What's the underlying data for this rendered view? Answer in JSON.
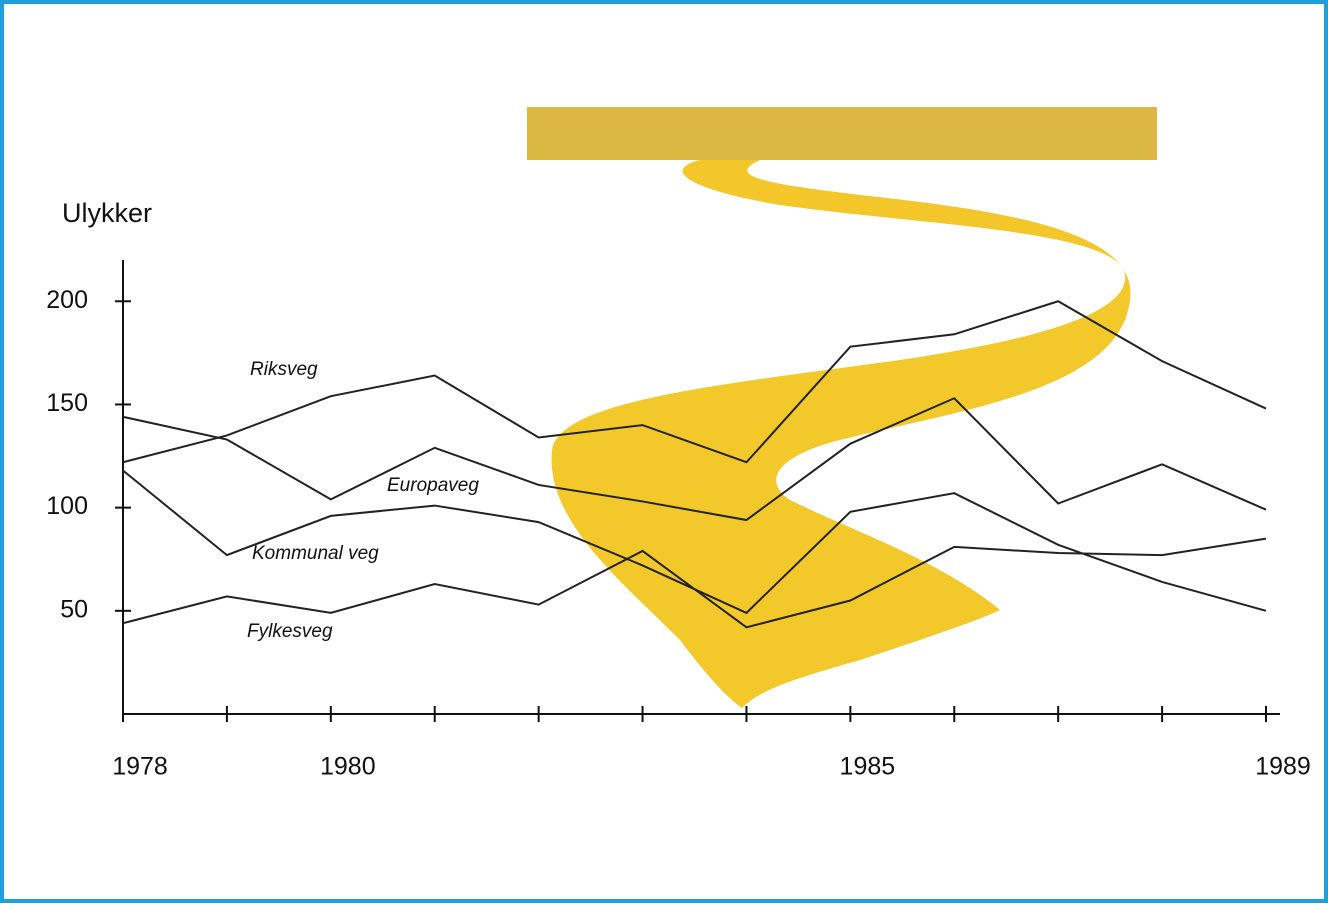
{
  "chart_data": {
    "type": "line",
    "y_label": "Ulykker",
    "categories": [
      "1978",
      null,
      "1980",
      null,
      null,
      null,
      null,
      "1985",
      null,
      null,
      null,
      "1989"
    ],
    "series": [
      {
        "name": "Riksveg",
        "color": "#222222",
        "values": [
          122,
          135,
          154,
          164,
          134,
          140,
          122,
          178,
          184,
          200,
          171,
          148
        ]
      },
      {
        "name": "Europaveg",
        "color": "#222222",
        "values": [
          144,
          133,
          104,
          129,
          111,
          103,
          94,
          131,
          153,
          102,
          121,
          99
        ]
      },
      {
        "name": "Kommunal veg",
        "color": "#222222",
        "values": [
          118,
          77,
          96,
          101,
          93,
          72,
          49,
          98,
          107,
          82,
          64,
          50
        ]
      },
      {
        "name": "Fylkesveg",
        "color": "#222222",
        "values": [
          44,
          57,
          49,
          63,
          53,
          79,
          42,
          55,
          81,
          78,
          77,
          85
        ]
      }
    ],
    "ylim": [
      0,
      220
    ],
    "yticks": [
      50,
      100,
      150,
      200
    ],
    "grid": false
  }
}
